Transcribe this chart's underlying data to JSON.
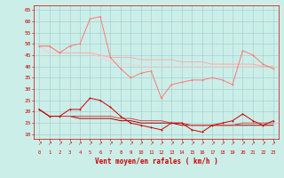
{
  "xlabel": "Vent moyen/en rafales ( km/h )",
  "bg_color": "#cceee8",
  "grid_color": "#99cccc",
  "x": [
    0,
    1,
    2,
    3,
    4,
    5,
    6,
    7,
    8,
    9,
    10,
    11,
    12,
    13,
    14,
    15,
    16,
    17,
    18,
    19,
    20,
    21,
    22,
    23
  ],
  "ylim": [
    8,
    67
  ],
  "yticks": [
    10,
    15,
    20,
    25,
    30,
    35,
    40,
    45,
    50,
    55,
    60,
    65
  ],
  "line1": [
    49,
    49,
    46,
    49,
    50,
    61,
    62,
    44,
    39,
    35,
    37,
    38,
    26,
    32,
    33,
    34,
    34,
    35,
    34,
    32,
    47,
    45,
    41,
    39
  ],
  "line2": [
    49,
    49,
    46,
    46,
    46,
    46,
    45,
    44,
    44,
    44,
    43,
    43,
    43,
    43,
    42,
    42,
    42,
    41,
    41,
    41,
    41,
    41,
    40,
    40
  ],
  "line3": [
    49,
    46,
    46,
    46,
    46,
    46,
    44,
    42,
    41,
    41,
    40,
    40,
    40,
    40,
    40,
    40,
    40,
    40,
    40,
    40,
    40,
    40,
    40,
    40
  ],
  "line4": [
    21,
    18,
    18,
    21,
    21,
    26,
    25,
    22,
    18,
    15,
    14,
    13,
    12,
    15,
    15,
    12,
    11,
    14,
    15,
    16,
    19,
    16,
    14,
    16
  ],
  "line5": [
    21,
    18,
    18,
    18,
    18,
    18,
    18,
    18,
    17,
    17,
    16,
    16,
    16,
    15,
    15,
    14,
    14,
    14,
    14,
    14,
    15,
    15,
    15,
    15
  ],
  "line6": [
    21,
    18,
    18,
    18,
    17,
    17,
    17,
    17,
    16,
    16,
    15,
    15,
    15,
    15,
    14,
    14,
    14,
    14,
    14,
    14,
    14,
    14,
    14,
    14
  ],
  "line1_color": "#ff7777",
  "line2_color": "#ffaaaa",
  "line3_color": "#ffcccc",
  "line4_color": "#cc0000",
  "line5_color": "#dd4444",
  "line6_color": "#990000",
  "red_color": "#cc0000"
}
